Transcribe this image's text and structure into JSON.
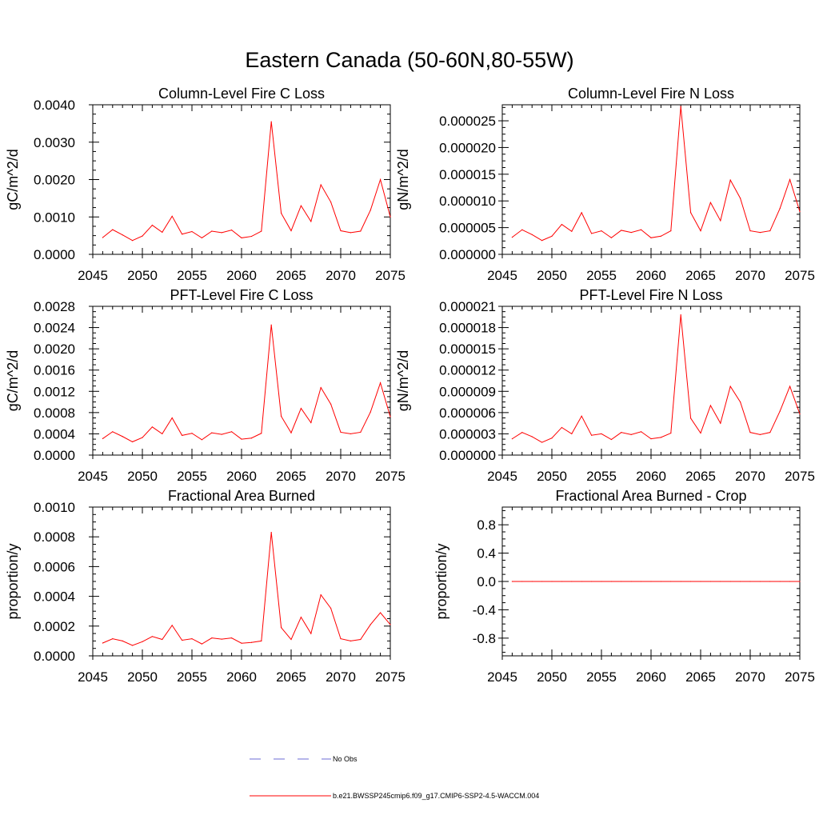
{
  "page": {
    "title": "Eastern Canada (50-60N,80-55W)"
  },
  "legend": {
    "entries": [
      {
        "label": "No Obs",
        "color": "#6b6bd6",
        "style": "dashed"
      },
      {
        "label": "b.e21.BWSSP245cmip6.f09_g17.CMIP6-SSP2-4.5-WACCM.004",
        "color": "#ff0000",
        "style": "solid"
      }
    ]
  },
  "chart_data": [
    {
      "type": "line",
      "title": "Column-Level Fire C Loss",
      "xlabel": "",
      "ylabel": "gC/m^2/d",
      "xlim": [
        2045,
        2075
      ],
      "ylim": [
        0,
        0.004
      ],
      "xticks": [
        "2045",
        "2050",
        "2055",
        "2060",
        "2065",
        "2070",
        "2075"
      ],
      "yticks": [
        "0.0000",
        "0.0010",
        "0.0020",
        "0.0030",
        "0.0040"
      ],
      "series": [
        {
          "color": "#ff0000",
          "x": [
            2046,
            2047,
            2048,
            2049,
            2050,
            2051,
            2052,
            2053,
            2054,
            2055,
            2056,
            2057,
            2058,
            2059,
            2060,
            2061,
            2062,
            2063,
            2064,
            2065,
            2066,
            2067,
            2068,
            2069,
            2070,
            2071,
            2072,
            2073,
            2074,
            2075
          ],
          "values": [
            0.00045,
            0.00066,
            0.00052,
            0.00037,
            0.00049,
            0.00078,
            0.00059,
            0.00102,
            0.00054,
            0.00061,
            0.00044,
            0.00062,
            0.00058,
            0.00065,
            0.00044,
            0.00048,
            0.00062,
            0.00355,
            0.0011,
            0.00063,
            0.0013,
            0.00088,
            0.00186,
            0.0014,
            0.00063,
            0.00058,
            0.00062,
            0.00118,
            0.002,
            0.001
          ]
        }
      ]
    },
    {
      "type": "line",
      "title": "Column-Level Fire N Loss",
      "xlabel": "",
      "ylabel": "gN/m^2/d",
      "xlim": [
        2045,
        2075
      ],
      "ylim": [
        0,
        2.8e-05
      ],
      "xticks": [
        "2045",
        "2050",
        "2055",
        "2060",
        "2065",
        "2070",
        "2075"
      ],
      "yticks": [
        "0.000000",
        "0.000005",
        "0.000010",
        "0.000015",
        "0.000020",
        "0.000025"
      ],
      "series": [
        {
          "color": "#ff0000",
          "x": [
            2046,
            2047,
            2048,
            2049,
            2050,
            2051,
            2052,
            2053,
            2054,
            2055,
            2056,
            2057,
            2058,
            2059,
            2060,
            2061,
            2062,
            2063,
            2064,
            2065,
            2066,
            2067,
            2068,
            2069,
            2070,
            2071,
            2072,
            2073,
            2074,
            2075
          ],
          "values": [
            3.2e-06,
            4.6e-06,
            3.7e-06,
            2.6e-06,
            3.4e-06,
            5.6e-06,
            4.3e-06,
            7.8e-06,
            3.9e-06,
            4.4e-06,
            3.1e-06,
            4.5e-06,
            4.1e-06,
            4.6e-06,
            3.1e-06,
            3.4e-06,
            4.4e-06,
            2.77e-05,
            7.8e-06,
            4.4e-06,
            9.7e-06,
            6.3e-06,
            1.39e-05,
            1.05e-05,
            4.4e-06,
            4.1e-06,
            4.4e-06,
            8.6e-06,
            1.4e-05,
            8e-06
          ]
        }
      ]
    },
    {
      "type": "line",
      "title": "PFT-Level Fire C Loss",
      "xlabel": "",
      "ylabel": "gC/m^2/d",
      "xlim": [
        2045,
        2075
      ],
      "ylim": [
        0,
        0.0028
      ],
      "xticks": [
        "2045",
        "2050",
        "2055",
        "2060",
        "2065",
        "2070",
        "2075"
      ],
      "yticks": [
        "0.0000",
        "0.0004",
        "0.0008",
        "0.0012",
        "0.0016",
        "0.0020",
        "0.0024",
        "0.0028"
      ],
      "series": [
        {
          "color": "#ff0000",
          "x": [
            2046,
            2047,
            2048,
            2049,
            2050,
            2051,
            2052,
            2053,
            2054,
            2055,
            2056,
            2057,
            2058,
            2059,
            2060,
            2061,
            2062,
            2063,
            2064,
            2065,
            2066,
            2067,
            2068,
            2069,
            2070,
            2071,
            2072,
            2073,
            2074,
            2075
          ],
          "values": [
            0.00031,
            0.00044,
            0.00035,
            0.00025,
            0.00033,
            0.00053,
            0.0004,
            0.0007,
            0.00037,
            0.00041,
            0.00029,
            0.00042,
            0.00039,
            0.00044,
            0.0003,
            0.00032,
            0.00041,
            0.00245,
            0.00073,
            0.00042,
            0.00088,
            0.00061,
            0.00127,
            0.00096,
            0.00043,
            0.0004,
            0.00043,
            0.00081,
            0.00136,
            0.00072
          ]
        }
      ]
    },
    {
      "type": "line",
      "title": "PFT-Level Fire N Loss",
      "xlabel": "",
      "ylabel": "gN/m^2/d",
      "xlim": [
        2045,
        2075
      ],
      "ylim": [
        0,
        2.1e-05
      ],
      "xticks": [
        "2045",
        "2050",
        "2055",
        "2060",
        "2065",
        "2070",
        "2075"
      ],
      "yticks": [
        "0.000000",
        "0.000003",
        "0.000006",
        "0.000009",
        "0.000012",
        "0.000015",
        "0.000018",
        "0.000021"
      ],
      "series": [
        {
          "color": "#ff0000",
          "x": [
            2046,
            2047,
            2048,
            2049,
            2050,
            2051,
            2052,
            2053,
            2054,
            2055,
            2056,
            2057,
            2058,
            2059,
            2060,
            2061,
            2062,
            2063,
            2064,
            2065,
            2066,
            2067,
            2068,
            2069,
            2070,
            2071,
            2072,
            2073,
            2074,
            2075
          ],
          "values": [
            2.3e-06,
            3.2e-06,
            2.6e-06,
            1.8e-06,
            2.4e-06,
            3.9e-06,
            3e-06,
            5.5e-06,
            2.8e-06,
            3e-06,
            2.2e-06,
            3.2e-06,
            2.9e-06,
            3.3e-06,
            2.3e-06,
            2.5e-06,
            3.1e-06,
            1.98e-05,
            5.2e-06,
            3.1e-06,
            7e-06,
            4.5e-06,
            9.7e-06,
            7.5e-06,
            3.2e-06,
            2.9e-06,
            3.2e-06,
            6.2e-06,
            9.7e-06,
            5.8e-06
          ]
        }
      ]
    },
    {
      "type": "line",
      "title": "Fractional Area Burned",
      "xlabel": "",
      "ylabel": "proportion/y",
      "xlim": [
        2045,
        2075
      ],
      "ylim": [
        0,
        0.001
      ],
      "xticks": [
        "2045",
        "2050",
        "2055",
        "2060",
        "2065",
        "2070",
        "2075"
      ],
      "yticks": [
        "0.0000",
        "0.0002",
        "0.0004",
        "0.0006",
        "0.0008",
        "0.0010"
      ],
      "series": [
        {
          "color": "#ff0000",
          "x": [
            2046,
            2047,
            2048,
            2049,
            2050,
            2051,
            2052,
            2053,
            2054,
            2055,
            2056,
            2057,
            2058,
            2059,
            2060,
            2061,
            2062,
            2063,
            2064,
            2065,
            2066,
            2067,
            2068,
            2069,
            2070,
            2071,
            2072,
            2073,
            2074,
            2075
          ],
          "values": [
            8.6e-05,
            0.000115,
            0.0001,
            7e-05,
            9.5e-05,
            0.00013,
            0.00011,
            0.000205,
            0.000105,
            0.000115,
            8e-05,
            0.00012,
            0.000112,
            0.00012,
            8.5e-05,
            9e-05,
            0.0001,
            0.00083,
            0.00019,
            0.00011,
            0.00026,
            0.00015,
            0.00041,
            0.00032,
            0.000115,
            0.0001,
            0.00011,
            0.00021,
            0.00029,
            0.00021
          ]
        }
      ]
    },
    {
      "type": "line",
      "title": "Fractional Area Burned - Crop",
      "xlabel": "",
      "ylabel": "proportion/y",
      "xlim": [
        2045,
        2075
      ],
      "ylim": [
        -1.05,
        1.05
      ],
      "xticks": [
        "2045",
        "2050",
        "2055",
        "2060",
        "2065",
        "2070",
        "2075"
      ],
      "yticks": [
        "-0.8",
        "-0.4",
        "0.0",
        "0.4",
        "0.8"
      ],
      "series": [
        {
          "color": "#ff0000",
          "x": [
            2046,
            2047,
            2048,
            2049,
            2050,
            2051,
            2052,
            2053,
            2054,
            2055,
            2056,
            2057,
            2058,
            2059,
            2060,
            2061,
            2062,
            2063,
            2064,
            2065,
            2066,
            2067,
            2068,
            2069,
            2070,
            2071,
            2072,
            2073,
            2074,
            2075
          ],
          "values": [
            0,
            0,
            0,
            0,
            0,
            0,
            0,
            0,
            0,
            0,
            0,
            0,
            0,
            0,
            0,
            0,
            0,
            0,
            0,
            0,
            0,
            0,
            0,
            0,
            0,
            0,
            0,
            0,
            0,
            0
          ]
        }
      ]
    }
  ]
}
